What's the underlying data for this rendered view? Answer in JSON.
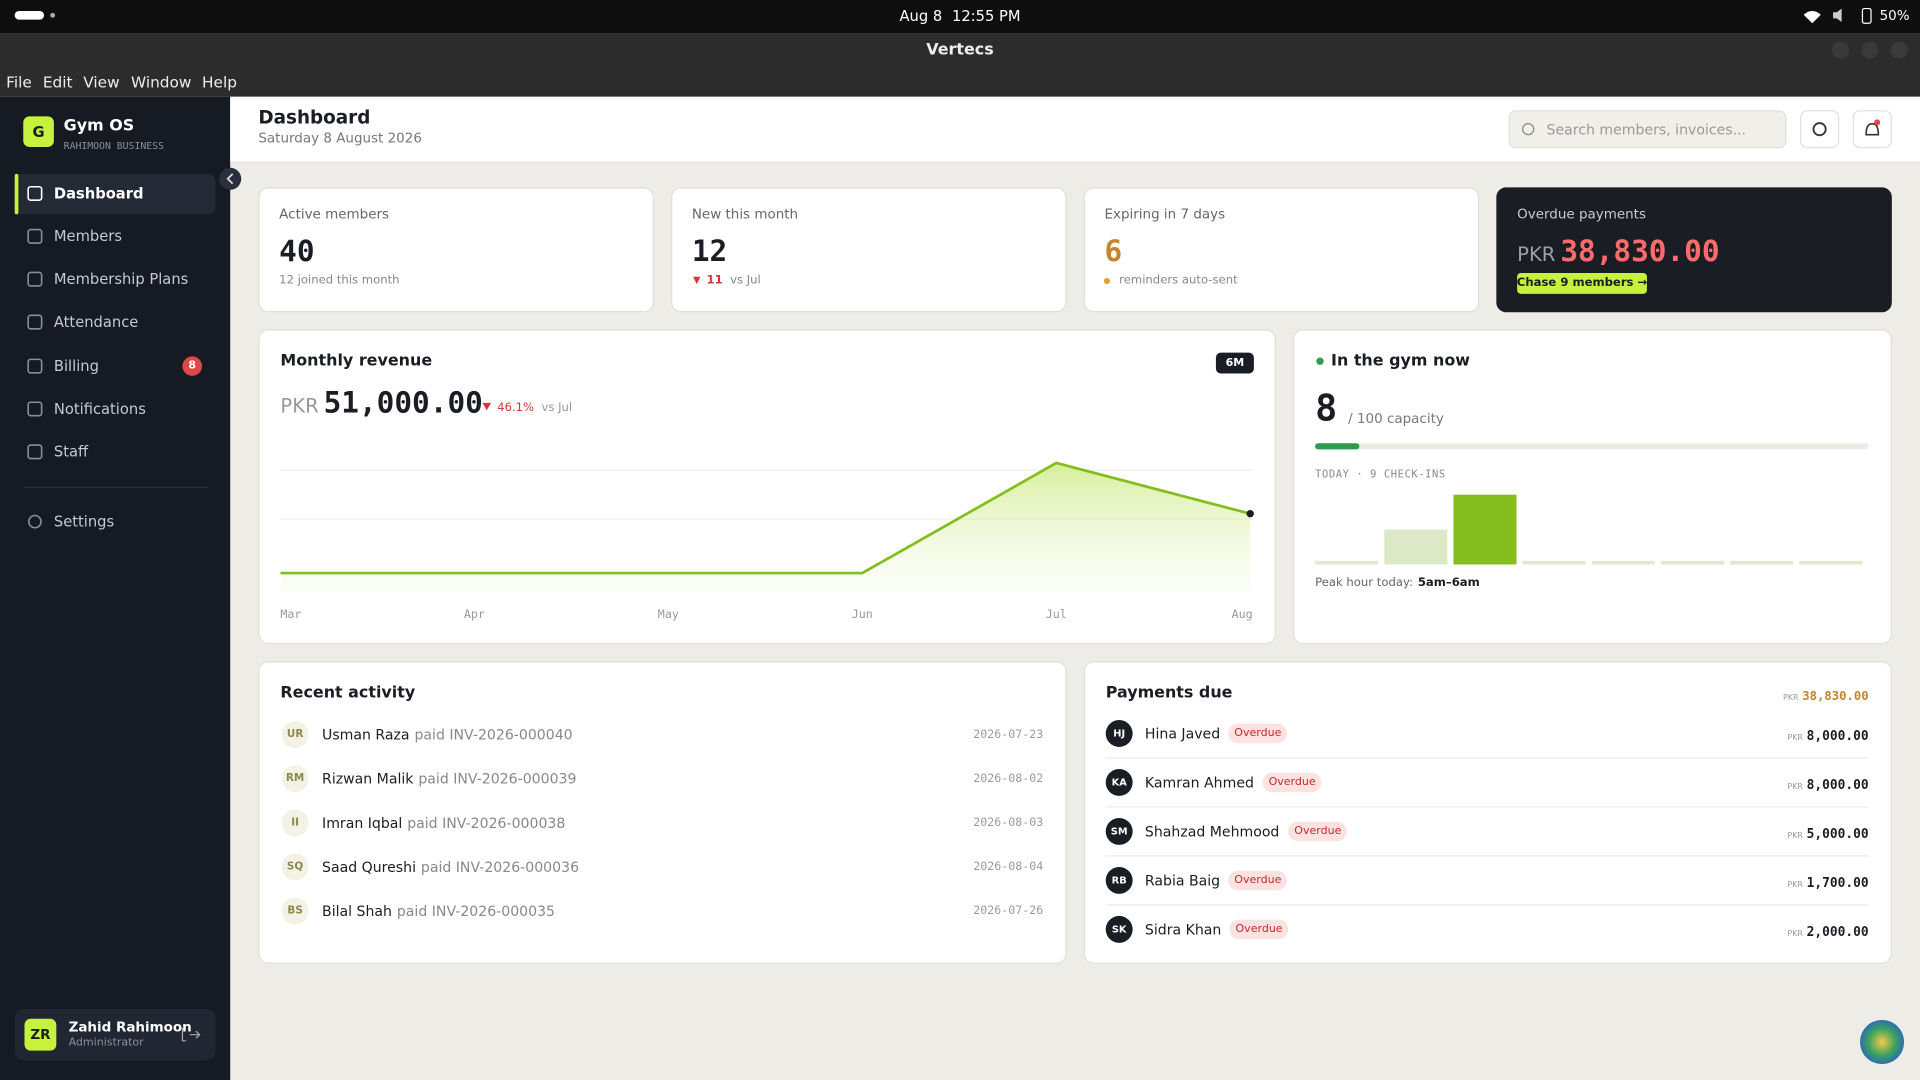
{
  "system_bar": {
    "date": "Aug 8",
    "time": "12:55 PM",
    "battery": "50%"
  },
  "window": {
    "title": "Vertecs",
    "menu": [
      "File",
      "Edit",
      "View",
      "Window",
      "Help"
    ]
  },
  "sidebar": {
    "logo": "G",
    "app_name": "Gym OS",
    "business": "RAHIMOON BUSINESS",
    "nav": [
      {
        "label": "Dashboard",
        "active": true
      },
      {
        "label": "Members"
      },
      {
        "label": "Membership Plans"
      },
      {
        "label": "Attendance"
      },
      {
        "label": "Billing",
        "badge": 8
      },
      {
        "label": "Notifications"
      },
      {
        "label": "Staff"
      }
    ],
    "settings": "Settings",
    "user": {
      "initials": "ZR",
      "name": "Zahid Rahimoon",
      "role": "Administrator"
    }
  },
  "header": {
    "title": "Dashboard",
    "date": "Saturday 8 August 2026",
    "search_placeholder": "Search members, invoices..."
  },
  "stats": [
    {
      "label": "Active members",
      "value": 40,
      "note": "12 joined this month"
    },
    {
      "label": "New this month",
      "value": 12,
      "delta": 11,
      "note": "vs Jul"
    },
    {
      "label": "Expiring in 7 days",
      "value": 6,
      "note": "reminders auto-sent"
    },
    {
      "label": "Overdue payments",
      "currency": "PKR",
      "amount": "38,830.00",
      "action": "Chase 9 members →"
    }
  ],
  "revenue_chart": {
    "type": "line",
    "title": "Monthly revenue",
    "range": "6M",
    "currency": "PKR",
    "total": "51,000.00",
    "change": "46.1%",
    "change_note": "vs Jul",
    "categories": [
      "Mar",
      "Apr",
      "May",
      "Jun",
      "Jul",
      "Aug"
    ],
    "values": [
      0,
      0,
      0,
      0,
      94620,
      51000
    ],
    "ylim": [
      0,
      100000
    ],
    "color": "#84bd1e"
  },
  "gym_now": {
    "title": "In the gym now",
    "count": 8,
    "capacity_label": "/ 100 capacity",
    "capacity": 100,
    "checkins_label": "TODAY · 9 CHECK-INS",
    "hourly_checkins": [
      0,
      3,
      6,
      0,
      0,
      0,
      0,
      0
    ],
    "peak_label": "Peak hour today:",
    "peak_hour": "5am–6am"
  },
  "recent_activity": {
    "title": "Recent activity",
    "items": [
      {
        "initials": "UR",
        "name": "Usman Raza",
        "action": "paid INV-2026-000040",
        "date": "2026-07-23"
      },
      {
        "initials": "RM",
        "name": "Rizwan Malik",
        "action": "paid INV-2026-000039",
        "date": "2026-08-02"
      },
      {
        "initials": "II",
        "name": "Imran Iqbal",
        "action": "paid INV-2026-000038",
        "date": "2026-08-03"
      },
      {
        "initials": "SQ",
        "name": "Saad Qureshi",
        "action": "paid INV-2026-000036",
        "date": "2026-08-04"
      },
      {
        "initials": "BS",
        "name": "Bilal Shah",
        "action": "paid INV-2026-000035",
        "date": "2026-07-26"
      }
    ]
  },
  "payments_due": {
    "title": "Payments due",
    "currency": "PKR",
    "total": "38,830.00",
    "items": [
      {
        "initials": "HJ",
        "name": "Hina Javed",
        "status": "Overdue",
        "currency": "PKR",
        "amount": "8,000.00"
      },
      {
        "initials": "KA",
        "name": "Kamran Ahmed",
        "status": "Overdue",
        "currency": "PKR",
        "amount": "8,000.00"
      },
      {
        "initials": "SM",
        "name": "Shahzad Mehmood",
        "status": "Overdue",
        "currency": "PKR",
        "amount": "5,000.00"
      },
      {
        "initials": "RB",
        "name": "Rabia Baig",
        "status": "Overdue",
        "currency": "PKR",
        "amount": "1,700.00"
      },
      {
        "initials": "SK",
        "name": "Sidra Khan",
        "status": "Overdue",
        "currency": "PKR",
        "amount": "2,000.00"
      }
    ]
  }
}
